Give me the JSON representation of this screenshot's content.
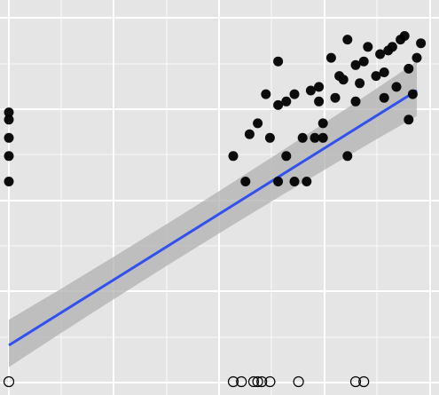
{
  "chart_data": {
    "type": "scatter",
    "title": "",
    "xlabel": "",
    "ylabel": "",
    "xlim": [
      0,
      1
    ],
    "ylim": [
      0,
      1
    ],
    "grid": true,
    "colors": {
      "panel": "#e5e5e5",
      "grid": "#ffffff",
      "point": "#000000",
      "open_point_stroke": "#000000",
      "trend_line": "#3050f0",
      "confidence_band": "#b0b0b0"
    },
    "filled_points": [
      {
        "x": 0.0,
        "y": 0.74
      },
      {
        "x": 0.0,
        "y": 0.72
      },
      {
        "x": 0.0,
        "y": 0.67
      },
      {
        "x": 0.0,
        "y": 0.62
      },
      {
        "x": 0.0,
        "y": 0.55
      },
      {
        "x": 0.55,
        "y": 0.62
      },
      {
        "x": 0.58,
        "y": 0.55
      },
      {
        "x": 0.59,
        "y": 0.68
      },
      {
        "x": 0.61,
        "y": 0.71
      },
      {
        "x": 0.63,
        "y": 0.79
      },
      {
        "x": 0.64,
        "y": 0.67
      },
      {
        "x": 0.66,
        "y": 0.76
      },
      {
        "x": 0.66,
        "y": 0.55
      },
      {
        "x": 0.66,
        "y": 0.88
      },
      {
        "x": 0.68,
        "y": 0.62
      },
      {
        "x": 0.68,
        "y": 0.77
      },
      {
        "x": 0.7,
        "y": 0.79
      },
      {
        "x": 0.7,
        "y": 0.55
      },
      {
        "x": 0.72,
        "y": 0.67
      },
      {
        "x": 0.73,
        "y": 0.55
      },
      {
        "x": 0.74,
        "y": 0.8
      },
      {
        "x": 0.75,
        "y": 0.67
      },
      {
        "x": 0.76,
        "y": 0.77
      },
      {
        "x": 0.76,
        "y": 0.81
      },
      {
        "x": 0.77,
        "y": 0.71
      },
      {
        "x": 0.77,
        "y": 0.67
      },
      {
        "x": 0.79,
        "y": 0.89
      },
      {
        "x": 0.8,
        "y": 0.78
      },
      {
        "x": 0.81,
        "y": 0.84
      },
      {
        "x": 0.82,
        "y": 0.83
      },
      {
        "x": 0.83,
        "y": 0.62
      },
      {
        "x": 0.83,
        "y": 0.94
      },
      {
        "x": 0.85,
        "y": 0.77
      },
      {
        "x": 0.85,
        "y": 0.87
      },
      {
        "x": 0.86,
        "y": 0.82
      },
      {
        "x": 0.87,
        "y": 0.88
      },
      {
        "x": 0.88,
        "y": 0.92
      },
      {
        "x": 0.9,
        "y": 0.84
      },
      {
        "x": 0.91,
        "y": 0.9
      },
      {
        "x": 0.92,
        "y": 0.78
      },
      {
        "x": 0.92,
        "y": 0.85
      },
      {
        "x": 0.93,
        "y": 0.91
      },
      {
        "x": 0.94,
        "y": 0.92
      },
      {
        "x": 0.95,
        "y": 0.81
      },
      {
        "x": 0.96,
        "y": 0.94
      },
      {
        "x": 0.97,
        "y": 0.95
      },
      {
        "x": 0.98,
        "y": 0.72
      },
      {
        "x": 0.98,
        "y": 0.86
      },
      {
        "x": 0.99,
        "y": 0.79
      },
      {
        "x": 1.0,
        "y": 0.89
      },
      {
        "x": 1.01,
        "y": 0.93
      }
    ],
    "open_points": [
      {
        "x": 0.0,
        "y": 0.0
      },
      {
        "x": 0.55,
        "y": 0.0
      },
      {
        "x": 0.57,
        "y": 0.0
      },
      {
        "x": 0.6,
        "y": 0.0
      },
      {
        "x": 0.61,
        "y": 0.0
      },
      {
        "x": 0.62,
        "y": 0.0
      },
      {
        "x": 0.64,
        "y": 0.0
      },
      {
        "x": 0.71,
        "y": 0.0
      },
      {
        "x": 0.85,
        "y": 0.0
      },
      {
        "x": 0.87,
        "y": 0.0
      }
    ],
    "trend_line": {
      "x": [
        0.0,
        1.0
      ],
      "y": [
        0.1,
        0.8
      ],
      "band_lower": [
        0.04,
        0.73
      ],
      "band_upper": [
        0.17,
        0.88
      ]
    }
  }
}
